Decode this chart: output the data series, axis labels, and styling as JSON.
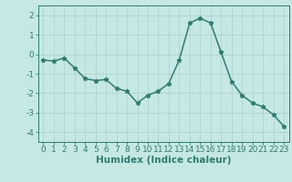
{
  "x": [
    0,
    1,
    2,
    3,
    4,
    5,
    6,
    7,
    8,
    9,
    10,
    11,
    12,
    13,
    14,
    15,
    16,
    17,
    18,
    19,
    20,
    21,
    22,
    23
  ],
  "y": [
    -0.3,
    -0.35,
    -0.2,
    -0.7,
    -1.25,
    -1.35,
    -1.3,
    -1.75,
    -1.9,
    -2.5,
    -2.1,
    -1.9,
    -1.5,
    -0.3,
    1.6,
    1.85,
    1.6,
    0.1,
    -1.4,
    -2.1,
    -2.5,
    -2.7,
    -3.1,
    -3.7
  ],
  "line_color": "#2e7d6e",
  "marker": "*",
  "marker_color": "#2e7d6e",
  "bg_color": "#c5e8e5",
  "grid_color": "#aecfcc",
  "xlabel": "Humidex (Indice chaleur)",
  "xlim": [
    -0.5,
    23.5
  ],
  "ylim": [
    -4.5,
    2.5
  ],
  "yticks": [
    -4,
    -3,
    -2,
    -1,
    0,
    1,
    2
  ],
  "xticks": [
    0,
    1,
    2,
    3,
    4,
    5,
    6,
    7,
    8,
    9,
    10,
    11,
    12,
    13,
    14,
    15,
    16,
    17,
    18,
    19,
    20,
    21,
    22,
    23
  ],
  "tick_fontsize": 6.5,
  "xlabel_fontsize": 7.5,
  "linewidth": 1.1,
  "markersize": 3.5
}
